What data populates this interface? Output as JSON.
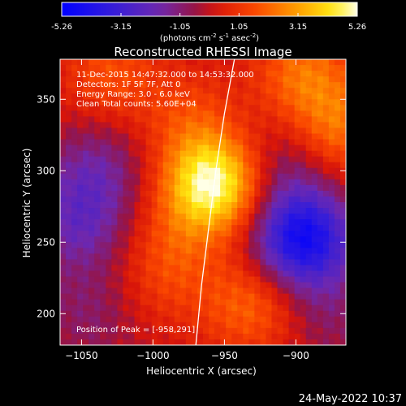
{
  "colorbar": {
    "tick_labels": [
      "-5.26",
      "-3.15",
      "-1.05",
      "1.05",
      "3.15",
      "5.26"
    ],
    "range": [
      -5.26,
      5.26
    ],
    "units_parts": [
      "(photons cm",
      "-2",
      " s",
      "-1",
      " asec",
      "-2",
      ")"
    ]
  },
  "chart_data": {
    "type": "heatmap",
    "title": "Reconstructed RHESSI Image",
    "xlabel": "Heliocentric X (arcsec)",
    "ylabel": "Heliocentric Y (arcsec)",
    "xlim": [
      -1065,
      -865
    ],
    "ylim": [
      178,
      378
    ],
    "x_ticks": [
      -1050,
      -1000,
      -950,
      -900
    ],
    "y_ticks": [
      200,
      250,
      300,
      350
    ],
    "colormap": "rhessi-blue-purple-red-yellow-white",
    "annotations": [
      "11-Dec-2015 14:47:32.000 to 14:53:32.000",
      "Detectors: 1F 5F 7F, Att 0",
      "Energy Range: 3.0 - 6.0 keV",
      "Clean    Total counts: 5.60E+04"
    ],
    "peak": {
      "label": "Position of Peak = [-958,291]",
      "x": -958,
      "y": 291
    },
    "limb_curve": [
      [
        -943,
        378
      ],
      [
        -950,
        340
      ],
      [
        -956,
        300
      ],
      [
        -961,
        260
      ],
      [
        -966,
        220
      ],
      [
        -970,
        178
      ]
    ],
    "sources": [
      {
        "x": -958,
        "y": 291,
        "value": 5.26
      },
      {
        "x": -895,
        "y": 368,
        "value": 2.2
      },
      {
        "x": -868,
        "y": 330,
        "value": 2.2
      },
      {
        "x": -1030,
        "y": 368,
        "value": 1.6
      },
      {
        "x": -932,
        "y": 205,
        "value": 2.0
      },
      {
        "x": -990,
        "y": 220,
        "value": 0.9
      },
      {
        "x": -985,
        "y": 250,
        "value": 1.1
      },
      {
        "x": -975,
        "y": 338,
        "value": 1.3
      },
      {
        "x": -895,
        "y": 252,
        "value": -4.6
      },
      {
        "x": -1052,
        "y": 262,
        "value": -1.8
      },
      {
        "x": -1040,
        "y": 300,
        "value": -1.5
      },
      {
        "x": -910,
        "y": 300,
        "value": -1.2
      },
      {
        "x": -1045,
        "y": 200,
        "value": -0.9
      },
      {
        "x": -875,
        "y": 200,
        "value": -0.8
      }
    ]
  },
  "timestamp": "24-May-2022 10:37"
}
